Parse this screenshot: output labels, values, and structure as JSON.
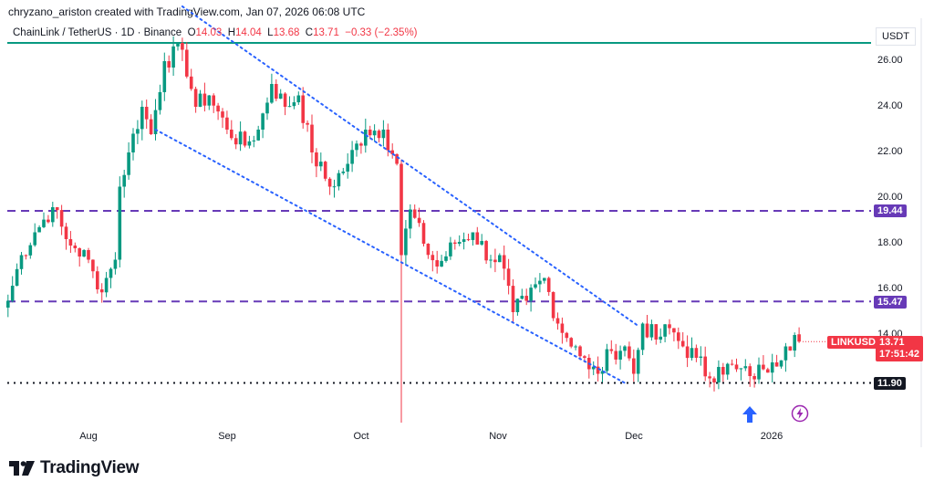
{
  "header": {
    "credit": "chryzano_ariston created with TradingView.com, Jan 07, 2026 06:08 UTC"
  },
  "legend": {
    "symbol": "ChainLink / TetherUS · 1D · Binance",
    "o_label": "O",
    "o": "14.03",
    "h_label": "H",
    "h": "14.04",
    "l_label": "L",
    "l": "13.68",
    "c_label": "C",
    "c": "13.71",
    "change": "−0.33 (−2.35%)"
  },
  "axis": {
    "currency": "USDT",
    "price_ticks": [
      "26.00",
      "24.00",
      "22.00",
      "20.00",
      "18.00",
      "16.00",
      "14.00"
    ],
    "date_ticks": [
      "Aug",
      "Sep",
      "Oct",
      "Nov",
      "Dec",
      "2026"
    ]
  },
  "levels": {
    "resistance_1": "19.44",
    "resistance_2": "15.47",
    "support": "11.90",
    "top_line": 26.8
  },
  "price_tag": {
    "symbol": "LINKUSDT",
    "price": "13.71",
    "countdown": "17:51:42"
  },
  "colors": {
    "up": "#089981",
    "down": "#f23645",
    "trend": "#2962ff",
    "level": "#673ab7",
    "top_line": "#089981"
  },
  "icons": {
    "arrow": "up-arrow-icon",
    "event": "lightning-icon"
  },
  "brand": {
    "logo_text": "TradingView"
  },
  "chart_data": {
    "type": "candlestick",
    "ylim": [
      8.2,
      28.7
    ],
    "price_path": [
      [
        "2025-07-14",
        15.5
      ],
      [
        "2025-07-17",
        17.5
      ],
      [
        "2025-07-20",
        18.5
      ],
      [
        "2025-07-24",
        19.6
      ],
      [
        "2025-07-27",
        18.2
      ],
      [
        "2025-07-29",
        17.8
      ],
      [
        "2025-08-01",
        17.3
      ],
      [
        "2025-08-03",
        16.0
      ],
      [
        "2025-08-05",
        16.5
      ],
      [
        "2025-08-07",
        17.3
      ],
      [
        "2025-08-08",
        20.5
      ],
      [
        "2025-08-10",
        22.0
      ],
      [
        "2025-08-13",
        24.0
      ],
      [
        "2025-08-15",
        22.8
      ],
      [
        "2025-08-18",
        26.0
      ],
      [
        "2025-08-22",
        26.5
      ],
      [
        "2025-08-25",
        24.0
      ],
      [
        "2025-08-28",
        24.5
      ],
      [
        "2025-09-01",
        23.0
      ],
      [
        "2025-09-05",
        22.3
      ],
      [
        "2025-09-08",
        23.0
      ],
      [
        "2025-09-11",
        25.0
      ],
      [
        "2025-09-14",
        24.0
      ],
      [
        "2025-09-17",
        24.5
      ],
      [
        "2025-09-20",
        22.0
      ],
      [
        "2025-09-24",
        20.5
      ],
      [
        "2025-09-28",
        21.5
      ],
      [
        "2025-10-02",
        23.0
      ],
      [
        "2025-10-06",
        23.0
      ],
      [
        "2025-10-09",
        21.5
      ],
      [
        "2025-10-10",
        17.5
      ],
      [
        "2025-10-12",
        19.5
      ],
      [
        "2025-10-15",
        18.0
      ],
      [
        "2025-10-18",
        17.0
      ],
      [
        "2025-10-22",
        18.0
      ],
      [
        "2025-10-26",
        18.5
      ],
      [
        "2025-10-30",
        17.3
      ],
      [
        "2025-11-01",
        17.5
      ],
      [
        "2025-11-04",
        15.0
      ],
      [
        "2025-11-07",
        15.5
      ],
      [
        "2025-11-11",
        16.5
      ],
      [
        "2025-11-14",
        14.5
      ],
      [
        "2025-11-18",
        13.5
      ],
      [
        "2025-11-21",
        12.5
      ],
      [
        "2025-11-23",
        12.3
      ],
      [
        "2025-11-26",
        13.3
      ],
      [
        "2025-11-29",
        13.5
      ],
      [
        "2025-12-01",
        12.3
      ],
      [
        "2025-12-03",
        14.5
      ],
      [
        "2025-12-06",
        13.8
      ],
      [
        "2025-12-09",
        14.3
      ],
      [
        "2025-12-12",
        13.5
      ],
      [
        "2025-12-15",
        13.0
      ],
      [
        "2025-12-18",
        12.1
      ],
      [
        "2025-12-20",
        12.6
      ],
      [
        "2025-12-24",
        12.5
      ],
      [
        "2025-12-27",
        12.2
      ],
      [
        "2025-12-30",
        12.5
      ],
      [
        "2026-01-01",
        12.8
      ],
      [
        "2026-01-04",
        13.5
      ],
      [
        "2026-01-06",
        14.0
      ],
      [
        "2026-01-07",
        13.71
      ]
    ],
    "trendlines": [
      {
        "from": [
          "2025-08-22",
          28.4
        ],
        "to": [
          "2025-12-02",
          14.4
        ]
      },
      {
        "from": [
          "2025-08-16",
          23.0
        ],
        "to": [
          "2025-11-29",
          11.9
        ]
      }
    ]
  }
}
